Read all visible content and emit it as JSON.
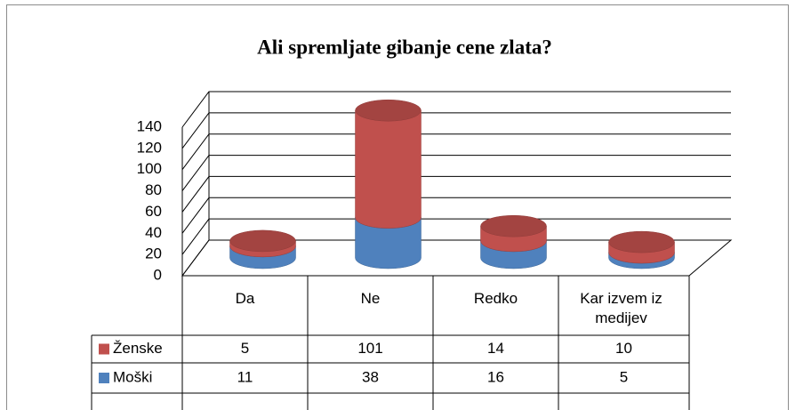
{
  "chart_data": {
    "type": "bar3d_stacked_cylinder",
    "title": "Ali spremljate gibanje cene zlata?",
    "categories": [
      "Da",
      "Ne",
      "Redko",
      "Kar izvem iz medijev"
    ],
    "series": [
      {
        "name": "Ženske",
        "color": "#c0504d",
        "values": [
          5,
          101,
          14,
          10
        ]
      },
      {
        "name": "Moški",
        "color": "#4f81bd",
        "values": [
          11,
          38,
          16,
          5
        ]
      }
    ],
    "stack_order": [
      1,
      0
    ],
    "ylim": [
      0,
      140
    ],
    "yticks": [
      0,
      20,
      40,
      60,
      80,
      100,
      120,
      140
    ],
    "grid": true
  }
}
